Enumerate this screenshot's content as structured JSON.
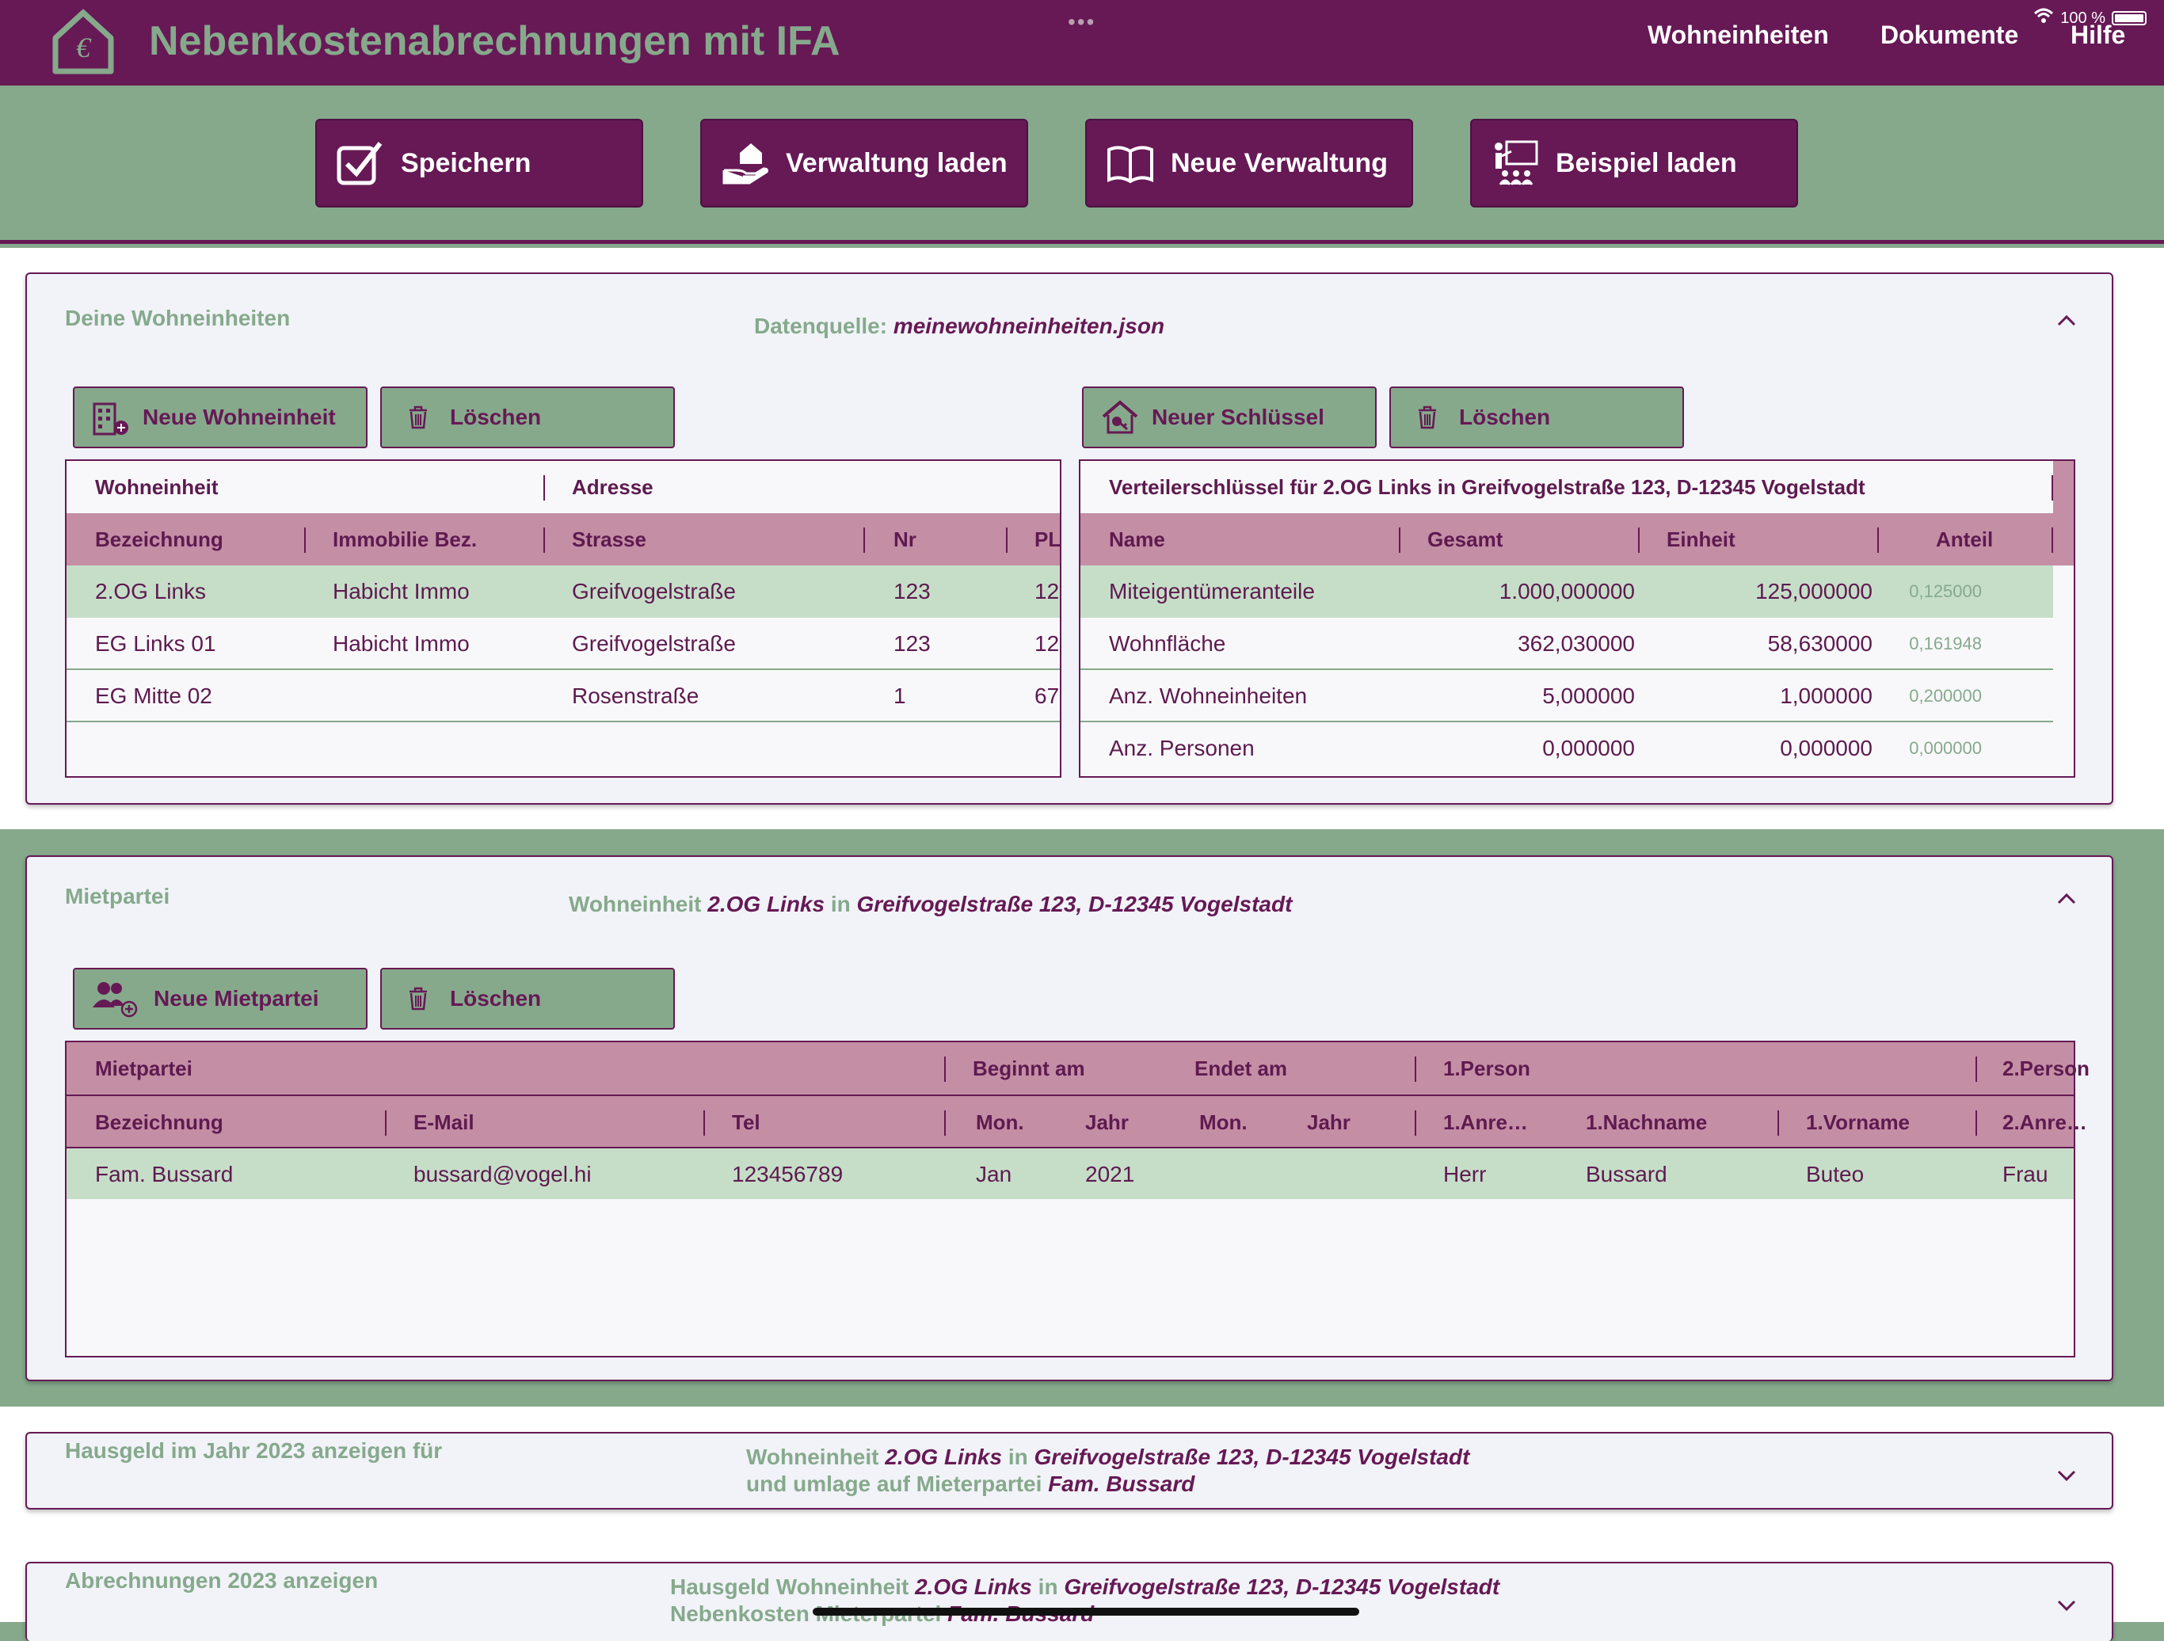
{
  "app": {
    "title": "Nebenkostenabrechnungen mit IFA",
    "nav": [
      "Wohneinheiten",
      "Dokumente",
      "Hilfe"
    ],
    "status_battery": "100 %",
    "logo_icon": "house-euro-icon"
  },
  "toolbar": {
    "buttons": [
      {
        "label": "Speichern",
        "icon": "checkbox-icon"
      },
      {
        "label": "Verwaltung laden",
        "icon": "hand-house-icon"
      },
      {
        "label": "Neue Verwaltung",
        "icon": "book-icon"
      },
      {
        "label": "Beispiel laden",
        "icon": "presentation-icon"
      }
    ]
  },
  "wohneinheiten": {
    "title": "Deine Wohneinheiten",
    "source_label": "Datenquelle:",
    "source_file": "meinewohneinheiten.json",
    "btn_new": "Neue Wohneinheit",
    "btn_delete": "Löschen",
    "btn_new_key": "Neuer Schlüssel",
    "btn_delete_key": "Löschen",
    "units_table": {
      "group_headers": [
        "Wohneinheit",
        "Adresse"
      ],
      "columns": [
        "Bezeichnung",
        "Immobilie Bez.",
        "Strasse",
        "Nr",
        "PL"
      ],
      "rows": [
        [
          "2.OG Links",
          "Habicht Immo",
          "Greifvogelstraße",
          "123",
          "12"
        ],
        [
          "EG Links 01",
          "Habicht Immo",
          "Greifvogelstraße",
          "123",
          "12"
        ],
        [
          "EG Mitte 02",
          "",
          "Rosenstraße",
          "1",
          "67"
        ]
      ]
    },
    "keys_table": {
      "group_header": "Verteilerschlüssel für 2.OG Links in Greifvogelstraße 123, D-12345 Vogelstadt",
      "columns": [
        "Name",
        "Gesamt",
        "Einheit",
        "Anteil"
      ],
      "rows": [
        [
          "Miteigentümeranteile",
          "1.000,000000",
          "125,000000",
          "0,125000"
        ],
        [
          "Wohnfläche",
          "362,030000",
          "58,630000",
          "0,161948"
        ],
        [
          "Anz. Wohneinheiten",
          "5,000000",
          "1,000000",
          "0,200000"
        ],
        [
          "Anz. Personen",
          "0,000000",
          "0,000000",
          "0,000000"
        ]
      ]
    }
  },
  "mietpartei": {
    "title": "Mietpartei",
    "sub_prefix": "Wohneinheit",
    "sub_unit": "2.OG Links",
    "sub_in": "in",
    "sub_address": "Greifvogelstraße 123, D-12345 Vogelstadt",
    "btn_new": "Neue Mietpartei",
    "btn_delete": "Löschen",
    "table": {
      "group_headers": [
        "Mietpartei",
        "Beginnt am",
        "Endet am",
        "1.Person",
        "2.Person"
      ],
      "columns": [
        "Bezeichnung",
        "E-Mail",
        "Tel",
        "Mon.",
        "Jahr",
        "Mon.",
        "Jahr",
        "1.Anre…",
        "1.Nachname",
        "1.Vorname",
        "2.Anre…"
      ],
      "rows": [
        [
          "Fam. Bussard",
          "bussard@vogel.hi",
          "123456789",
          "Jan",
          "2021",
          "",
          "",
          "Herr",
          "Bussard",
          "Buteo",
          "Frau"
        ]
      ]
    }
  },
  "hausgeld": {
    "title": "Hausgeld im Jahr 2023 anzeigen für",
    "line1_prefix": "Wohneinheit",
    "line1_unit": "2.OG Links",
    "line1_in": "in",
    "line1_address": "Greifvogelstraße 123, D-12345 Vogelstadt",
    "line2_prefix": "und umlage auf Mieterpartei",
    "line2_party": "Fam. Bussard"
  },
  "abrechnungen": {
    "title": "Abrechnungen 2023 anzeigen",
    "line1_prefix": "Hausgeld Wohneinheit",
    "line1_unit": "2.OG Links",
    "line1_in": "in",
    "line1_address": "Greifvogelstraße 123, D-12345 Vogelstadt",
    "line2_prefix": "Nebenkosten Mieterpartei",
    "line2_party": "Fam. Bussard"
  },
  "colors": {
    "primary": "#661955",
    "green": "#86a98c",
    "header_pink": "#c48ea5",
    "selected_row": "#c6dec8"
  }
}
